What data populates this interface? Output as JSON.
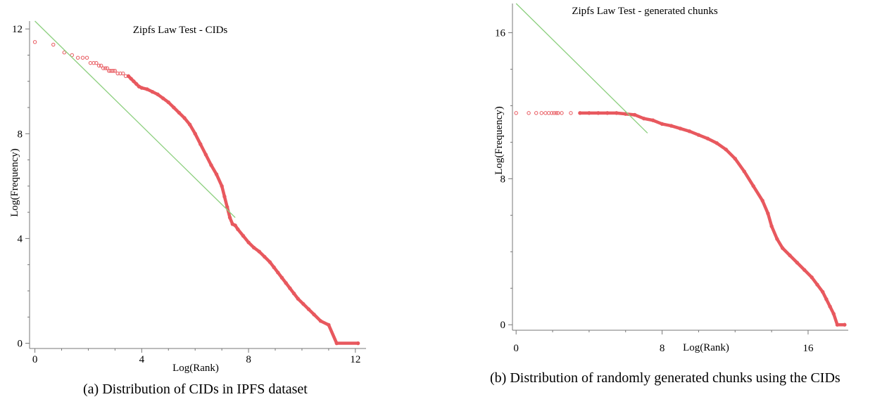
{
  "chart_data": [
    {
      "type": "scatter",
      "title": "Zipfs Law Test - CIDs",
      "xlabel": "Log(Rank)",
      "ylabel": "Log(Frequency)",
      "xlim": [
        -0.2,
        12.4
      ],
      "ylim": [
        -0.2,
        12.3
      ],
      "x_ticks": [
        "0",
        "4",
        "8",
        "12"
      ],
      "y_ticks": [
        "0",
        "4",
        "8",
        "12"
      ],
      "grid": false,
      "series": [
        {
          "marker": "open-circle",
          "color": "#e8585e",
          "points": [
            [
              0,
              11.5
            ],
            [
              0.69,
              11.4
            ],
            [
              1.1,
              11.1
            ],
            [
              1.39,
              11.0
            ],
            [
              1.61,
              10.9
            ],
            [
              1.79,
              10.9
            ],
            [
              1.95,
              10.9
            ],
            [
              2.08,
              10.7
            ],
            [
              2.2,
              10.7
            ],
            [
              2.3,
              10.7
            ],
            [
              2.4,
              10.6
            ],
            [
              2.48,
              10.6
            ],
            [
              2.56,
              10.5
            ],
            [
              2.64,
              10.5
            ],
            [
              2.71,
              10.5
            ],
            [
              2.77,
              10.4
            ],
            [
              2.83,
              10.4
            ],
            [
              2.89,
              10.4
            ],
            [
              2.94,
              10.4
            ],
            [
              3.0,
              10.4
            ],
            [
              3.1,
              10.3
            ],
            [
              3.2,
              10.3
            ],
            [
              3.3,
              10.3
            ],
            [
              3.4,
              10.2
            ],
            [
              3.5,
              10.2
            ],
            [
              3.6,
              10.1
            ],
            [
              3.7,
              10.0
            ],
            [
              3.8,
              9.9
            ],
            [
              3.9,
              9.8
            ],
            [
              4.0,
              9.75
            ],
            [
              4.2,
              9.7
            ],
            [
              4.4,
              9.6
            ],
            [
              4.6,
              9.5
            ],
            [
              4.8,
              9.35
            ],
            [
              5.0,
              9.2
            ],
            [
              5.2,
              9.0
            ],
            [
              5.4,
              8.8
            ],
            [
              5.6,
              8.6
            ],
            [
              5.8,
              8.35
            ],
            [
              6.0,
              8.0
            ],
            [
              6.2,
              7.6
            ],
            [
              6.4,
              7.2
            ],
            [
              6.6,
              6.8
            ],
            [
              6.8,
              6.45
            ],
            [
              7.0,
              6.0
            ],
            [
              7.1,
              5.6
            ],
            [
              7.2,
              5.2
            ],
            [
              7.3,
              4.8
            ],
            [
              7.4,
              4.55
            ],
            [
              7.5,
              4.5
            ],
            [
              7.6,
              4.35
            ],
            [
              7.8,
              4.1
            ],
            [
              8.0,
              3.85
            ],
            [
              8.2,
              3.65
            ],
            [
              8.4,
              3.5
            ],
            [
              8.6,
              3.3
            ],
            [
              8.8,
              3.1
            ],
            [
              8.95,
              2.9
            ],
            [
              9.1,
              2.7
            ],
            [
              9.25,
              2.5
            ],
            [
              9.4,
              2.3
            ],
            [
              9.55,
              2.1
            ],
            [
              9.7,
              1.9
            ],
            [
              9.85,
              1.7
            ],
            [
              10.05,
              1.5
            ],
            [
              10.25,
              1.3
            ],
            [
              10.45,
              1.1
            ],
            [
              10.7,
              0.85
            ],
            [
              11.0,
              0.7
            ],
            [
              11.3,
              0.0
            ],
            [
              12.1,
              0.0
            ]
          ]
        },
        {
          "marker": "line",
          "color": "#8ccf7e",
          "points": [
            [
              0,
              12.3
            ],
            [
              7.5,
              4.8
            ]
          ]
        }
      ]
    },
    {
      "type": "scatter",
      "title": "Zipfs Law Test - generated chunks",
      "xlabel": "Log(Rank)",
      "ylabel": "Log(Frequency)",
      "xlim": [
        -0.2,
        18.2
      ],
      "ylim": [
        -0.3,
        17.6
      ],
      "x_ticks": [
        "0",
        "8",
        "16"
      ],
      "y_ticks": [
        "0",
        "8",
        "16"
      ],
      "grid": false,
      "series": [
        {
          "marker": "open-circle",
          "color": "#e8585e",
          "points": [
            [
              0,
              11.6
            ],
            [
              0.69,
              11.6
            ],
            [
              1.1,
              11.6
            ],
            [
              1.39,
              11.6
            ],
            [
              1.61,
              11.6
            ],
            [
              1.79,
              11.6
            ],
            [
              1.95,
              11.6
            ],
            [
              2.08,
              11.6
            ],
            [
              2.2,
              11.6
            ],
            [
              2.3,
              11.6
            ],
            [
              2.5,
              11.6
            ],
            [
              3.0,
              11.6
            ],
            [
              3.5,
              11.6
            ],
            [
              4.0,
              11.6
            ],
            [
              4.5,
              11.6
            ],
            [
              5.0,
              11.6
            ],
            [
              5.5,
              11.6
            ],
            [
              6.0,
              11.55
            ],
            [
              6.5,
              11.5
            ],
            [
              7.0,
              11.3
            ],
            [
              7.5,
              11.2
            ],
            [
              8.0,
              11.0
            ],
            [
              8.5,
              10.9
            ],
            [
              9.0,
              10.75
            ],
            [
              9.5,
              10.6
            ],
            [
              10.0,
              10.4
            ],
            [
              10.5,
              10.2
            ],
            [
              11.0,
              9.95
            ],
            [
              11.5,
              9.6
            ],
            [
              12.0,
              9.1
            ],
            [
              12.5,
              8.4
            ],
            [
              13.0,
              7.6
            ],
            [
              13.5,
              6.8
            ],
            [
              13.8,
              6.1
            ],
            [
              14.0,
              5.4
            ],
            [
              14.3,
              4.7
            ],
            [
              14.6,
              4.2
            ],
            [
              15.0,
              3.8
            ],
            [
              15.4,
              3.4
            ],
            [
              15.8,
              3.0
            ],
            [
              16.2,
              2.6
            ],
            [
              16.5,
              2.2
            ],
            [
              16.8,
              1.8
            ],
            [
              17.0,
              1.4
            ],
            [
              17.2,
              1.0
            ],
            [
              17.4,
              0.6
            ],
            [
              17.6,
              0.0
            ],
            [
              18.0,
              0.0
            ]
          ]
        },
        {
          "marker": "line",
          "color": "#8ccf7e",
          "points": [
            [
              0,
              17.6
            ],
            [
              7.2,
              10.5
            ]
          ]
        }
      ]
    }
  ],
  "captions": {
    "a": "(a) Distribution of CIDs in IPFS dataset",
    "b": "(b) Distribution of randomly generated chunks using the CIDs"
  }
}
